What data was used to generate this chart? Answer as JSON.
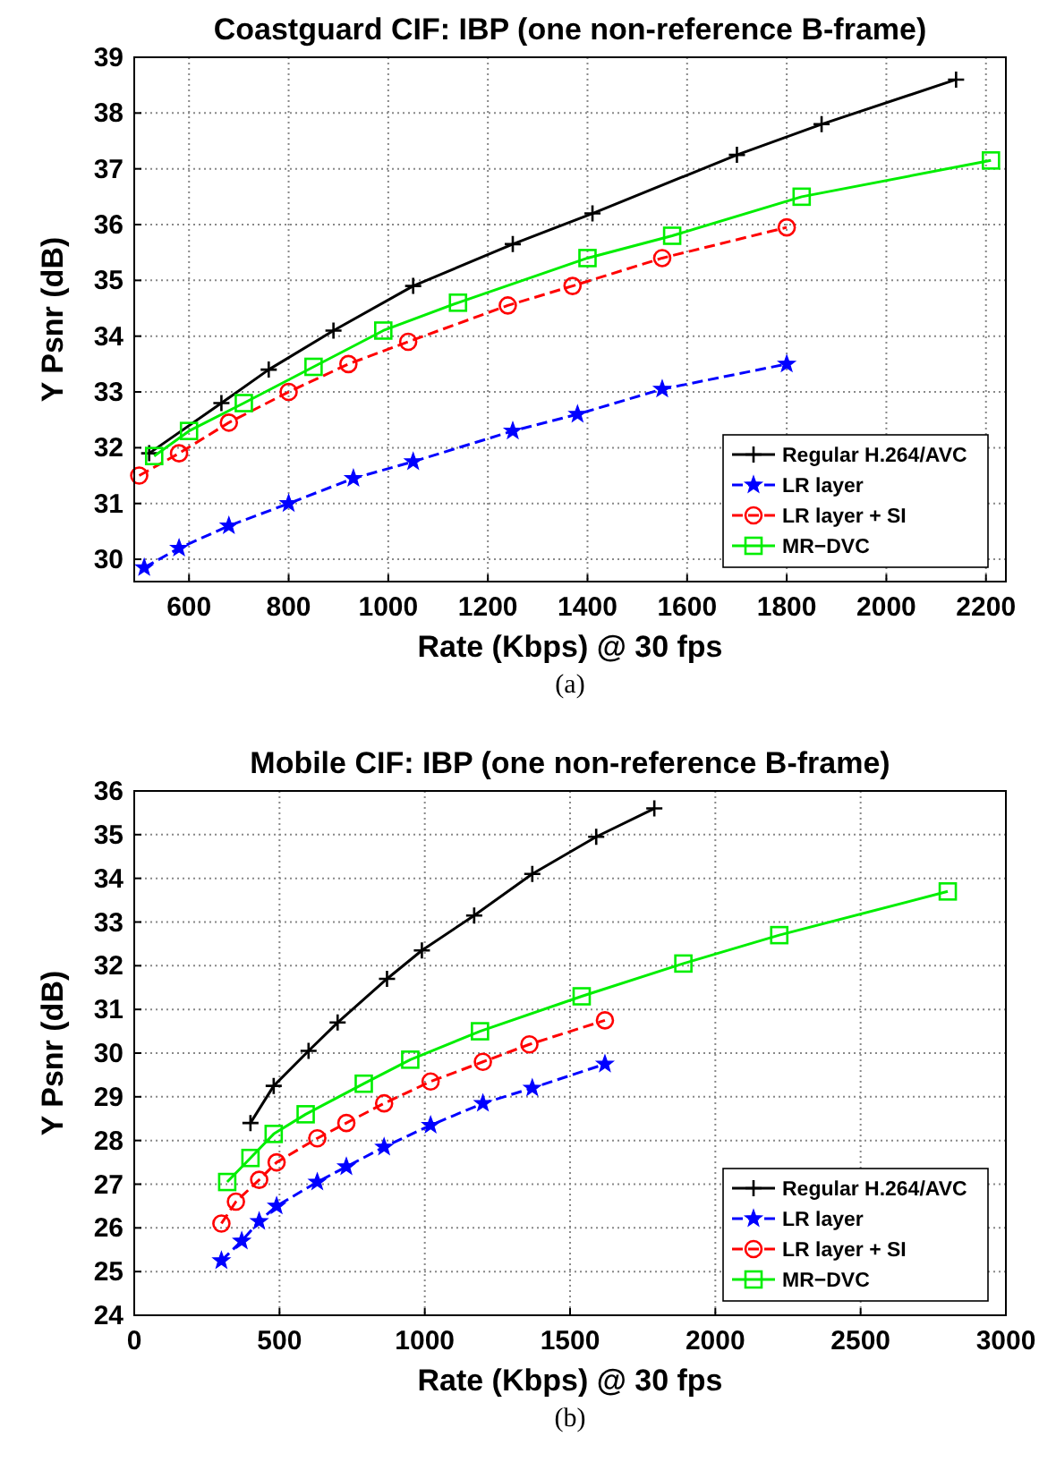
{
  "chart_data": [
    {
      "type": "line",
      "title": "Coastguard CIF: IBP (one non-reference B-frame)",
      "xlabel": "Rate (Kbps) @ 30 fps",
      "ylabel": "Y Psnr (dB)",
      "annotations": [
        "(a)"
      ],
      "xlim": [
        490,
        2240
      ],
      "ylim": [
        29.6,
        39
      ],
      "xticks": [
        600,
        800,
        1000,
        1200,
        1400,
        1600,
        1800,
        2000,
        2200
      ],
      "yticks": [
        30,
        31,
        32,
        33,
        34,
        35,
        36,
        37,
        38,
        39
      ],
      "grid": true,
      "legend": "bottom right",
      "series": [
        {
          "name": "Regular H.264/AVC",
          "color": "#000000",
          "marker": "cross",
          "line_style": "solid",
          "x": [
            520,
            665,
            760,
            890,
            1050,
            1250,
            1410,
            1700,
            1870,
            2140
          ],
          "values": [
            31.9,
            32.8,
            33.4,
            34.1,
            34.9,
            35.65,
            36.2,
            37.25,
            37.8,
            38.6
          ]
        },
        {
          "name": "LR layer",
          "color": "#0000ff",
          "marker": "star",
          "line_style": "dashed",
          "x": [
            510,
            580,
            680,
            800,
            930,
            1050,
            1250,
            1380,
            1550,
            1800
          ],
          "values": [
            29.85,
            30.2,
            30.6,
            31.0,
            31.45,
            31.75,
            32.3,
            32.6,
            33.05,
            33.5
          ]
        },
        {
          "name": "LR layer + SI",
          "color": "#ff0000",
          "marker": "circle",
          "line_style": "dashed",
          "x": [
            500,
            580,
            680,
            800,
            920,
            1040,
            1240,
            1370,
            1550,
            1800
          ],
          "values": [
            31.5,
            31.9,
            32.45,
            33.0,
            33.5,
            33.9,
            34.55,
            34.9,
            35.4,
            35.95
          ]
        },
        {
          "name": "MR−DVC",
          "color": "#00ee00",
          "marker": "square",
          "line_style": "solid",
          "x": [
            530,
            600,
            710,
            850,
            990,
            1140,
            1400,
            1570,
            1830,
            2210
          ],
          "values": [
            31.85,
            32.3,
            32.8,
            33.45,
            34.1,
            34.6,
            35.4,
            35.8,
            36.5,
            37.15
          ]
        }
      ]
    },
    {
      "type": "line",
      "title": "Mobile CIF: IBP (one non-reference B-frame)",
      "xlabel": "Rate (Kbps) @ 30 fps",
      "ylabel": "Y Psnr (dB)",
      "annotations": [
        "(b)"
      ],
      "xlim": [
        0,
        3000
      ],
      "ylim": [
        24,
        36
      ],
      "xticks": [
        0,
        500,
        1000,
        1500,
        2000,
        2500,
        3000
      ],
      "yticks": [
        24,
        25,
        26,
        27,
        28,
        29,
        30,
        31,
        32,
        33,
        34,
        35,
        36
      ],
      "grid": true,
      "legend": "bottom right",
      "series": [
        {
          "name": "Regular H.264/AVC",
          "color": "#000000",
          "marker": "cross",
          "line_style": "solid",
          "x": [
            400,
            480,
            600,
            700,
            870,
            990,
            1170,
            1370,
            1590,
            1790
          ],
          "values": [
            28.4,
            29.25,
            30.05,
            30.7,
            31.7,
            32.35,
            33.15,
            34.1,
            34.95,
            35.6
          ]
        },
        {
          "name": "LR layer",
          "color": "#0000ff",
          "marker": "star",
          "line_style": "dashed",
          "x": [
            300,
            370,
            430,
            490,
            630,
            730,
            860,
            1020,
            1200,
            1370,
            1620
          ],
          "values": [
            25.25,
            25.7,
            26.15,
            26.5,
            27.05,
            27.4,
            27.85,
            28.35,
            28.85,
            29.2,
            29.75
          ]
        },
        {
          "name": "LR layer + SI",
          "color": "#ff0000",
          "marker": "circle",
          "line_style": "dashed",
          "x": [
            300,
            350,
            430,
            490,
            630,
            730,
            860,
            1020,
            1200,
            1360,
            1620
          ],
          "values": [
            26.1,
            26.6,
            27.1,
            27.5,
            28.05,
            28.4,
            28.85,
            29.35,
            29.8,
            30.2,
            30.75
          ]
        },
        {
          "name": "MR−DVC",
          "color": "#00ee00",
          "marker": "square",
          "line_style": "solid",
          "x": [
            320,
            400,
            480,
            590,
            790,
            950,
            1190,
            1540,
            1890,
            2220,
            2800
          ],
          "values": [
            27.05,
            27.6,
            28.15,
            28.6,
            29.3,
            29.85,
            30.5,
            31.3,
            32.05,
            32.7,
            33.7
          ]
        }
      ]
    }
  ]
}
